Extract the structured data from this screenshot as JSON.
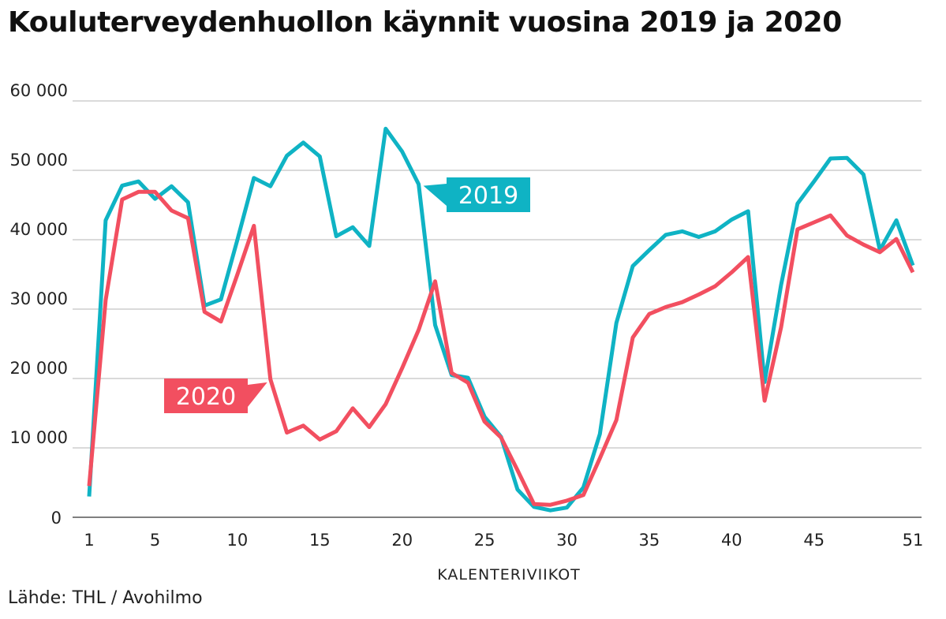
{
  "title": "Kouluterveydenhuollon käynnit vuosina 2019 ja 2020",
  "source": "Lähde: THL / Avohilmo",
  "chart_data": {
    "type": "line",
    "title": "Kouluterveydenhuollon käynnit vuosina 2019 ja 2020",
    "xlabel": "KALENTERIVIIKOT",
    "ylabel": "",
    "xlim": [
      1,
      51
    ],
    "ylim": [
      0,
      60000
    ],
    "yticks": [
      0,
      10000,
      20000,
      30000,
      40000,
      50000,
      60000
    ],
    "ytick_labels": [
      "0",
      "10 000",
      "20 000",
      "30 000",
      "40 000",
      "50 000",
      "60 000"
    ],
    "xticks": [
      1,
      5,
      10,
      15,
      20,
      25,
      30,
      35,
      40,
      45,
      51
    ],
    "xtick_labels": [
      "1",
      "5",
      "10",
      "15",
      "20",
      "25",
      "30",
      "35",
      "40",
      "45",
      "51"
    ],
    "grid": "horizontal",
    "legend": "inline labels",
    "x": [
      1,
      2,
      3,
      4,
      5,
      6,
      7,
      8,
      9,
      10,
      11,
      12,
      13,
      14,
      15,
      16,
      17,
      18,
      19,
      20,
      21,
      22,
      23,
      24,
      25,
      26,
      27,
      28,
      29,
      30,
      31,
      32,
      33,
      34,
      35,
      36,
      37,
      38,
      39,
      40,
      41,
      42,
      43,
      44,
      45,
      46,
      47,
      48,
      49,
      50,
      51
    ],
    "series": [
      {
        "name": "2019",
        "color": "#0fb3c4",
        "values": [
          3000,
          42800,
          47800,
          48400,
          45900,
          47700,
          45400,
          30500,
          31400,
          40000,
          48900,
          47700,
          52100,
          54000,
          52000,
          40500,
          41800,
          39100,
          56000,
          52700,
          48000,
          27700,
          20500,
          20100,
          14500,
          11600,
          4000,
          1500,
          1000,
          1400,
          4300,
          12000,
          28000,
          36200,
          38500,
          40700,
          41200,
          40400,
          41200,
          42900,
          44100,
          19500,
          33500,
          45200,
          48400,
          51700,
          51800,
          49400,
          38500,
          42800,
          36300
        ]
      },
      {
        "name": "2020",
        "color": "#f24f60",
        "values": [
          4500,
          31300,
          45800,
          46900,
          46900,
          44200,
          43100,
          29600,
          28200,
          35000,
          42000,
          19900,
          12200,
          13200,
          11200,
          12400,
          15700,
          13000,
          16300,
          21500,
          27000,
          34000,
          20800,
          19400,
          13800,
          11500,
          6800,
          1900,
          1800,
          2400,
          3200,
          8500,
          14000,
          25900,
          29300,
          30300,
          31000,
          32100,
          33300,
          35300,
          37500,
          16800,
          27400,
          41500,
          42500,
          43500,
          40600,
          39300,
          38200,
          40100,
          35300
        ]
      }
    ],
    "annotations": [
      {
        "text": "2019",
        "series": "2019",
        "x": 21
      },
      {
        "text": "2020",
        "series": "2020",
        "x": 12
      }
    ]
  }
}
